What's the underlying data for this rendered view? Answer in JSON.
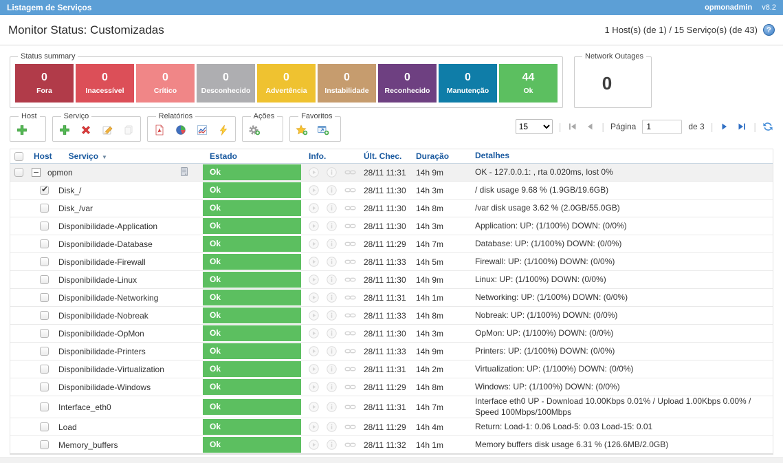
{
  "topbar": {
    "title": "Listagem de Serviços",
    "user": "opmonadmin",
    "version": "v8.2"
  },
  "page": {
    "title": "Monitor Status: Customizadas",
    "counts_right": "1 Host(s) (de 1) / 15 Serviço(s) (de 43)",
    "help_icon": "question-mark-circle"
  },
  "status_summary": {
    "legend": "Status summary",
    "boxes": [
      {
        "label": "Fora",
        "count": "0",
        "color": "#b13b49"
      },
      {
        "label": "Inacessível",
        "count": "0",
        "color": "#dc4f58"
      },
      {
        "label": "Crítico",
        "count": "0",
        "color": "#f08687"
      },
      {
        "label": "Desconhecido",
        "count": "0",
        "color": "#aeaeb1"
      },
      {
        "label": "Advertência",
        "count": "0",
        "color": "#efc230"
      },
      {
        "label": "Instabilidade",
        "count": "0",
        "color": "#c69c6e"
      },
      {
        "label": "Reconhecido",
        "count": "0",
        "color": "#6e4081"
      },
      {
        "label": "Manutenção",
        "count": "0",
        "color": "#0f7da8"
      },
      {
        "label": "Ok",
        "count": "44",
        "color": "#5cbf60"
      }
    ]
  },
  "network_outages": {
    "legend": "Network Outages",
    "count": "0"
  },
  "toolbar": {
    "groups": [
      {
        "legend": "Host",
        "icons": [
          {
            "icon": "add",
            "name": "add-host-icon"
          }
        ]
      },
      {
        "legend": "Serviço",
        "icons": [
          {
            "icon": "add",
            "name": "add-service-icon"
          },
          {
            "icon": "delete",
            "name": "delete-service-icon"
          },
          {
            "icon": "edit",
            "name": "edit-service-icon"
          },
          {
            "icon": "copy",
            "name": "copy-service-icon",
            "disabled": true
          }
        ]
      },
      {
        "legend": "Relatórios",
        "icons": [
          {
            "icon": "pdf",
            "name": "pdf-report-icon"
          },
          {
            "icon": "pie",
            "name": "pie-chart-report-icon"
          },
          {
            "icon": "chart",
            "name": "line-chart-report-icon"
          },
          {
            "icon": "lightning",
            "name": "quick-report-icon"
          }
        ]
      },
      {
        "legend": "Ações",
        "icons": [
          {
            "icon": "gear-add",
            "name": "actions-gear-icon"
          }
        ]
      },
      {
        "legend": "Favoritos",
        "icons": [
          {
            "icon": "star-add",
            "name": "add-favorite-icon"
          },
          {
            "icon": "export-add",
            "name": "add-shortcut-icon"
          }
        ]
      }
    ]
  },
  "pagination": {
    "page_size": "15",
    "pagina_label": "Página",
    "current_page": "1",
    "of_label": "de 3"
  },
  "table": {
    "headers": {
      "host": "Host",
      "servico": "Serviço",
      "estado": "Estado",
      "info": "Info.",
      "ult_chec": "Últ. Chec.",
      "duracao": "Duração",
      "detalhes": "Detalhes"
    },
    "info_icon_names": [
      "status-play-icon",
      "status-info-icon",
      "status-link-icon"
    ],
    "host_row": {
      "name": "opmon",
      "estado": "Ok",
      "last_check": "28/11 11:31",
      "duration": "14h 9m",
      "details": "OK - 127.0.0.1: , rta 0.020ms, lost 0%"
    },
    "rows": [
      {
        "service": "Disk_/",
        "checked": true,
        "estado": "Ok",
        "last_check": "28/11 11:30",
        "duration": "14h 3m",
        "details": "/ disk usage 9.68 % (1.9GB/19.6GB)"
      },
      {
        "service": "Disk_/var",
        "checked": false,
        "estado": "Ok",
        "last_check": "28/11 11:30",
        "duration": "14h 8m",
        "details": "/var disk usage 3.62 % (2.0GB/55.0GB)"
      },
      {
        "service": "Disponibilidade-Application",
        "checked": false,
        "estado": "Ok",
        "last_check": "28/11 11:30",
        "duration": "14h 3m",
        "details": "Application: UP: (1/100%) DOWN: (0/0%)"
      },
      {
        "service": "Disponibilidade-Database",
        "checked": false,
        "estado": "Ok",
        "last_check": "28/11 11:29",
        "duration": "14h 7m",
        "details": "Database: UP: (1/100%) DOWN: (0/0%)"
      },
      {
        "service": "Disponibilidade-Firewall",
        "checked": false,
        "estado": "Ok",
        "last_check": "28/11 11:33",
        "duration": "14h 5m",
        "details": "Firewall: UP: (1/100%) DOWN: (0/0%)"
      },
      {
        "service": "Disponibilidade-Linux",
        "checked": false,
        "estado": "Ok",
        "last_check": "28/11 11:30",
        "duration": "14h 9m",
        "details": "Linux: UP: (1/100%) DOWN: (0/0%)"
      },
      {
        "service": "Disponibilidade-Networking",
        "checked": false,
        "estado": "Ok",
        "last_check": "28/11 11:31",
        "duration": "14h 1m",
        "details": "Networking: UP: (1/100%) DOWN: (0/0%)"
      },
      {
        "service": "Disponibilidade-Nobreak",
        "checked": false,
        "estado": "Ok",
        "last_check": "28/11 11:33",
        "duration": "14h 8m",
        "details": "Nobreak: UP: (1/100%) DOWN: (0/0%)"
      },
      {
        "service": "Disponibilidade-OpMon",
        "checked": false,
        "estado": "Ok",
        "last_check": "28/11 11:30",
        "duration": "14h 3m",
        "details": "OpMon: UP: (1/100%) DOWN: (0/0%)"
      },
      {
        "service": "Disponibilidade-Printers",
        "checked": false,
        "estado": "Ok",
        "last_check": "28/11 11:33",
        "duration": "14h 9m",
        "details": "Printers: UP: (1/100%) DOWN: (0/0%)"
      },
      {
        "service": "Disponibilidade-Virtualization",
        "checked": false,
        "estado": "Ok",
        "last_check": "28/11 11:31",
        "duration": "14h 2m",
        "details": "Virtualization: UP: (1/100%) DOWN: (0/0%)"
      },
      {
        "service": "Disponibilidade-Windows",
        "checked": false,
        "estado": "Ok",
        "last_check": "28/11 11:29",
        "duration": "14h 8m",
        "details": "Windows: UP: (1/100%) DOWN: (0/0%)"
      },
      {
        "service": "Interface_eth0",
        "checked": false,
        "estado": "Ok",
        "last_check": "28/11 11:31",
        "duration": "14h 7m",
        "details": "Interface eth0 UP - Download 10.00Kbps 0.01% / Upload 1.00Kbps 0.00% / Speed 100Mbps/100Mbps"
      },
      {
        "service": "Load",
        "checked": false,
        "estado": "Ok",
        "last_check": "28/11 11:29",
        "duration": "14h 4m",
        "details": "Return: Load-1: 0.06 Load-5: 0.03 Load-15: 0.01"
      },
      {
        "service": "Memory_buffers",
        "checked": false,
        "estado": "Ok",
        "last_check": "28/11 11:32",
        "duration": "14h 1m",
        "details": "Memory buffers disk usage 6.31 % (126.6MB/2.0GB)"
      }
    ]
  }
}
